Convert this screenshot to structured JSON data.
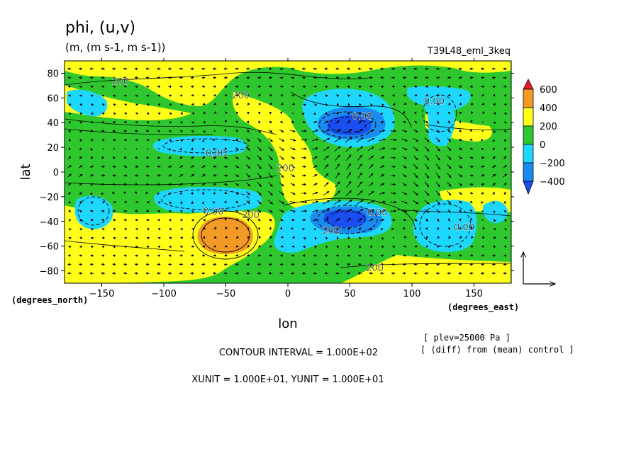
{
  "chart_data": {
    "type": "heatmap",
    "title": "phi, (u,v)",
    "subtitle": "(m, (m s-1, m s-1))",
    "run_label": "T39L48_eml_3keq",
    "xlabel": "lon",
    "ylabel": "lat",
    "x_units": "(degrees_east)",
    "y_units": "(degrees_north)",
    "xlim": [
      -180,
      180
    ],
    "ylim": [
      -90,
      90
    ],
    "x_ticks": [
      -150,
      -100,
      -50,
      0,
      50,
      100,
      150
    ],
    "y_ticks": [
      80,
      60,
      40,
      20,
      0,
      -20,
      -40,
      -60,
      -80
    ],
    "x_tick_labels": [
      "−150",
      "−100",
      "−50",
      "0",
      "50",
      "100",
      "150"
    ],
    "y_tick_labels": [
      "80",
      "60",
      "40",
      "20",
      "0",
      "−20",
      "−40",
      "−60",
      "−80"
    ],
    "colorbar": {
      "levels": [
        "600",
        "400",
        "200",
        "0",
        "−200",
        "−400"
      ],
      "colors": [
        "#e8192c",
        "#f39a26",
        "#ffff1a",
        "#2ec82e",
        "#1ed7ff",
        "#1a8bf0",
        "#1a4ef0"
      ]
    },
    "contour_labels": [
      {
        "text": "200",
        "lon": -135,
        "lat": 73
      },
      {
        "text": "200",
        "lon": -38,
        "lat": 62
      },
      {
        "text": "0.00",
        "lon": -58,
        "lat": 15
      },
      {
        "text": "0.00",
        "lon": 60,
        "lat": 45
      },
      {
        "text": "0.00",
        "lon": 118,
        "lat": 57
      },
      {
        "text": "200",
        "lon": -2,
        "lat": 3
      },
      {
        "text": "0.00",
        "lon": -60,
        "lat": -32
      },
      {
        "text": "200",
        "lon": -30,
        "lat": -35
      },
      {
        "text": "200",
        "lon": 35,
        "lat": -48
      },
      {
        "text": "0.00",
        "lon": 72,
        "lat": -33
      },
      {
        "text": "0.00",
        "lon": 142,
        "lat": -45
      },
      {
        "text": "200",
        "lon": 70,
        "lat": -78
      }
    ],
    "vector_reference": {
      "xunit": "1.000E+01",
      "yunit": "1.000E+01"
    },
    "footer": {
      "contour_interval": "CONTOUR INTERVAL = 1.000E+02",
      "units": "XUNIT = 1.000E+01, YUNIT = 1.000E+01",
      "plev": "[ plev=25000 Pa ]",
      "diff": "[ (diff) from (mean) control ]"
    }
  }
}
